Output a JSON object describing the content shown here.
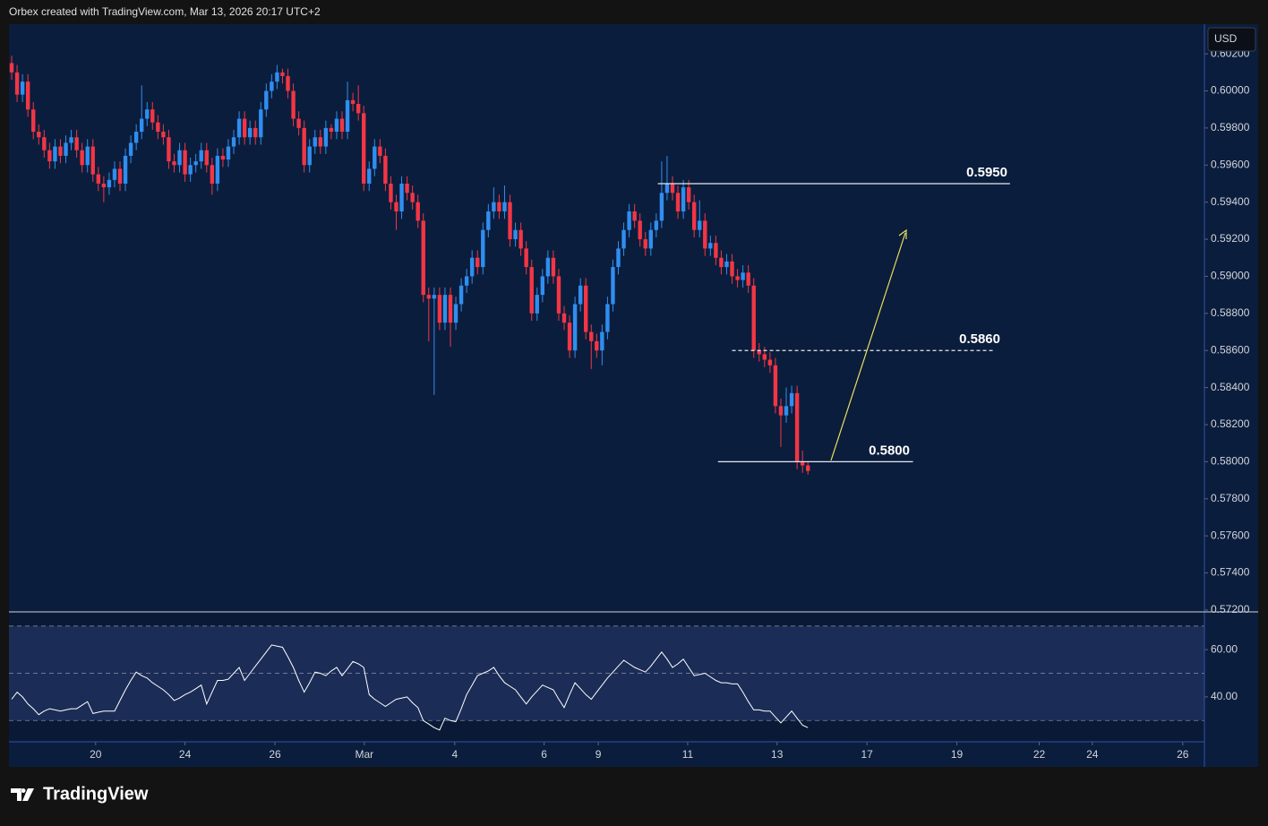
{
  "header": "Orbex created with TradingView.com, Mar 13, 2026 20:17 UTC+2",
  "logo": "TradingView",
  "chart_data": [
    {
      "type": "candlestick",
      "currency": "USD",
      "up_color": "#2f8ef0",
      "down_color": "#f23645",
      "grid": false,
      "xlim": [
        -0.5,
        220.2
      ],
      "ylim": [
        0.5719,
        0.6036
      ],
      "xticks": [
        {
          "value": 15.5,
          "label": "20"
        },
        {
          "value": 32,
          "label": "24"
        },
        {
          "value": 48.6,
          "label": "26"
        },
        {
          "value": 65.1,
          "label": "Mar"
        },
        {
          "value": 81.8,
          "label": "4"
        },
        {
          "value": 98.3,
          "label": "6"
        },
        {
          "value": 108.3,
          "label": "9"
        },
        {
          "value": 124.8,
          "label": "11"
        },
        {
          "value": 141.3,
          "label": "13"
        },
        {
          "value": 157.9,
          "label": "17"
        },
        {
          "value": 174.5,
          "label": "19"
        },
        {
          "value": 189.7,
          "label": "22"
        },
        {
          "value": 199.5,
          "label": "24"
        },
        {
          "value": 216.2,
          "label": "26"
        }
      ],
      "yticks": [
        {
          "value": 0.572,
          "label": "0.57200"
        },
        {
          "value": 0.574,
          "label": "0.57400"
        },
        {
          "value": 0.576,
          "label": "0.57600"
        },
        {
          "value": 0.578,
          "label": "0.57800"
        },
        {
          "value": 0.58,
          "label": "0.58000"
        },
        {
          "value": 0.582,
          "label": "0.58200"
        },
        {
          "value": 0.584,
          "label": "0.58400"
        },
        {
          "value": 0.586,
          "label": "0.58600"
        },
        {
          "value": 0.588,
          "label": "0.58800"
        },
        {
          "value": 0.59,
          "label": "0.59000"
        },
        {
          "value": 0.592,
          "label": "0.59200"
        },
        {
          "value": 0.594,
          "label": "0.59400"
        },
        {
          "value": 0.596,
          "label": "0.59600"
        },
        {
          "value": 0.598,
          "label": "0.59800"
        },
        {
          "value": 0.6,
          "label": "0.60000"
        },
        {
          "value": 0.602,
          "label": "0.60200"
        }
      ],
      "levels": [
        {
          "value": 0.595,
          "label": "0.5950",
          "style": "solid"
        },
        {
          "value": 0.586,
          "label": "0.5860",
          "style": "dashed"
        },
        {
          "value": 0.58,
          "label": "0.5800",
          "style": "solid"
        }
      ],
      "open": [
        0.6015,
        0.601,
        0.5998,
        0.6005,
        0.599,
        0.5978,
        0.5975,
        0.5968,
        0.5962,
        0.597,
        0.5965,
        0.5972,
        0.5975,
        0.5968,
        0.596,
        0.597,
        0.5955,
        0.595,
        0.5948,
        0.5952,
        0.5958,
        0.595,
        0.5965,
        0.5972,
        0.5978,
        0.5985,
        0.599,
        0.5983,
        0.5978,
        0.5975,
        0.5962,
        0.596,
        0.5968,
        0.5955,
        0.596,
        0.5962,
        0.5968,
        0.596,
        0.595,
        0.5965,
        0.5963,
        0.597,
        0.5975,
        0.5985,
        0.5975,
        0.598,
        0.5975,
        0.599,
        0.6,
        0.6005,
        0.601,
        0.6008,
        0.6,
        0.5985,
        0.598,
        0.596,
        0.597,
        0.5975,
        0.597,
        0.598,
        0.5978,
        0.5985,
        0.5978,
        0.5995,
        0.5993,
        0.5988,
        0.595,
        0.5958,
        0.597,
        0.5965,
        0.595,
        0.594,
        0.5935,
        0.595,
        0.5945,
        0.594,
        0.593,
        0.589,
        0.5888,
        0.589,
        0.5875,
        0.589,
        0.5875,
        0.5885,
        0.5895,
        0.59,
        0.591,
        0.5905,
        0.5925,
        0.5935,
        0.594,
        0.5935,
        0.594,
        0.592,
        0.5925,
        0.5915,
        0.5905,
        0.588,
        0.589,
        0.59,
        0.591,
        0.59,
        0.588,
        0.5875,
        0.586,
        0.5885,
        0.5895,
        0.587,
        0.5865,
        0.586,
        0.587,
        0.5885,
        0.5905,
        0.5915,
        0.5925,
        0.5935,
        0.593,
        0.592,
        0.5915,
        0.5925,
        0.593,
        0.5945,
        0.595,
        0.5945,
        0.5935,
        0.5948,
        0.594,
        0.5925,
        0.593,
        0.5915,
        0.5918,
        0.591,
        0.5905,
        0.5908,
        0.59,
        0.5898,
        0.5902,
        0.5895,
        0.586,
        0.5858,
        0.5855,
        0.5852,
        0.583,
        0.5825,
        0.583,
        0.5837,
        0.58,
        0.5798
      ],
      "high": [
        0.6019,
        0.6014,
        0.6009,
        0.6009,
        0.5994,
        0.5982,
        0.5979,
        0.5972,
        0.5974,
        0.5974,
        0.5976,
        0.5979,
        0.5979,
        0.5972,
        0.5974,
        0.5974,
        0.5959,
        0.5954,
        0.5956,
        0.5962,
        0.5962,
        0.5969,
        0.5976,
        0.5982,
        0.6003,
        0.5994,
        0.5994,
        0.5987,
        0.5982,
        0.5979,
        0.5966,
        0.5972,
        0.5972,
        0.5964,
        0.5966,
        0.5972,
        0.5972,
        0.5964,
        0.5969,
        0.5969,
        0.5974,
        0.5979,
        0.5989,
        0.5989,
        0.5984,
        0.5984,
        0.5994,
        0.6004,
        0.6009,
        0.6014,
        0.6012,
        0.6012,
        0.6004,
        0.5989,
        0.5984,
        0.5974,
        0.5979,
        0.5979,
        0.5984,
        0.5982,
        0.5989,
        0.5989,
        0.6005,
        0.5999,
        0.6003,
        0.5992,
        0.5962,
        0.5974,
        0.5974,
        0.5969,
        0.5954,
        0.5944,
        0.5954,
        0.5954,
        0.5949,
        0.5944,
        0.5934,
        0.5894,
        0.5894,
        0.5894,
        0.5894,
        0.5894,
        0.5889,
        0.5899,
        0.5904,
        0.5914,
        0.5914,
        0.5929,
        0.5939,
        0.5948,
        0.5944,
        0.5949,
        0.5944,
        0.5929,
        0.5929,
        0.5919,
        0.5909,
        0.5894,
        0.5904,
        0.5914,
        0.5914,
        0.5904,
        0.5884,
        0.5879,
        0.5889,
        0.5899,
        0.5899,
        0.5874,
        0.5869,
        0.5874,
        0.5889,
        0.5909,
        0.5919,
        0.5929,
        0.5939,
        0.5939,
        0.5934,
        0.5924,
        0.5929,
        0.5934,
        0.5962,
        0.5965,
        0.5954,
        0.5949,
        0.5952,
        0.5952,
        0.5944,
        0.5941,
        0.5934,
        0.5922,
        0.5922,
        0.5914,
        0.5912,
        0.5912,
        0.5904,
        0.5906,
        0.5906,
        0.5899,
        0.5864,
        0.5862,
        0.5859,
        0.5856,
        0.5834,
        0.584,
        0.5841,
        0.5841,
        0.5806,
        0.58
      ],
      "low": [
        0.6006,
        0.5994,
        0.5994,
        0.5986,
        0.5974,
        0.5971,
        0.5964,
        0.5958,
        0.5958,
        0.5961,
        0.5961,
        0.5968,
        0.5964,
        0.5956,
        0.5956,
        0.5951,
        0.5946,
        0.594,
        0.5944,
        0.5948,
        0.5946,
        0.5946,
        0.5961,
        0.5968,
        0.5974,
        0.5981,
        0.5979,
        0.5974,
        0.5971,
        0.5958,
        0.5956,
        0.5956,
        0.5951,
        0.5951,
        0.5956,
        0.5958,
        0.5956,
        0.5944,
        0.5946,
        0.5959,
        0.5959,
        0.5966,
        0.5971,
        0.5971,
        0.5971,
        0.5971,
        0.5971,
        0.5986,
        0.5996,
        0.6001,
        0.6004,
        0.5996,
        0.5981,
        0.5976,
        0.5956,
        0.5956,
        0.5966,
        0.5966,
        0.5966,
        0.5974,
        0.5974,
        0.5974,
        0.5974,
        0.5989,
        0.5984,
        0.5946,
        0.5946,
        0.5954,
        0.5961,
        0.5946,
        0.5936,
        0.5925,
        0.5931,
        0.5941,
        0.5936,
        0.5926,
        0.5886,
        0.5865,
        0.5836,
        0.5871,
        0.5871,
        0.5862,
        0.5871,
        0.5881,
        0.5891,
        0.5896,
        0.5901,
        0.5901,
        0.5921,
        0.5931,
        0.5931,
        0.5931,
        0.5916,
        0.5916,
        0.5911,
        0.5901,
        0.5876,
        0.5876,
        0.5886,
        0.5896,
        0.5896,
        0.5876,
        0.5871,
        0.5856,
        0.5856,
        0.5881,
        0.5866,
        0.585,
        0.5856,
        0.5852,
        0.5866,
        0.5881,
        0.5901,
        0.5911,
        0.5921,
        0.5926,
        0.5916,
        0.5911,
        0.5911,
        0.5921,
        0.5926,
        0.5941,
        0.5941,
        0.5931,
        0.5931,
        0.5936,
        0.5921,
        0.5921,
        0.5911,
        0.5911,
        0.5906,
        0.5901,
        0.5901,
        0.5896,
        0.5894,
        0.5894,
        0.5891,
        0.5856,
        0.5854,
        0.5851,
        0.5848,
        0.5826,
        0.5808,
        0.5821,
        0.5826,
        0.5796,
        0.5794,
        0.5793
      ],
      "close": [
        0.601,
        0.5998,
        0.6005,
        0.599,
        0.5978,
        0.5975,
        0.5968,
        0.5962,
        0.597,
        0.5965,
        0.5972,
        0.5975,
        0.5968,
        0.596,
        0.597,
        0.5955,
        0.595,
        0.5948,
        0.5952,
        0.5958,
        0.595,
        0.5965,
        0.5972,
        0.5978,
        0.5985,
        0.599,
        0.5983,
        0.5978,
        0.5975,
        0.5962,
        0.596,
        0.5968,
        0.5955,
        0.596,
        0.5962,
        0.5968,
        0.596,
        0.595,
        0.5965,
        0.5963,
        0.597,
        0.5975,
        0.5985,
        0.5975,
        0.598,
        0.5975,
        0.599,
        0.6,
        0.6005,
        0.601,
        0.6008,
        0.6,
        0.5985,
        0.598,
        0.596,
        0.597,
        0.5975,
        0.597,
        0.598,
        0.5978,
        0.5985,
        0.5978,
        0.5995,
        0.5993,
        0.5988,
        0.595,
        0.5958,
        0.597,
        0.5965,
        0.595,
        0.594,
        0.5935,
        0.595,
        0.5945,
        0.594,
        0.593,
        0.589,
        0.5888,
        0.589,
        0.5875,
        0.589,
        0.5875,
        0.5885,
        0.5895,
        0.59,
        0.591,
        0.5905,
        0.5925,
        0.5935,
        0.594,
        0.5935,
        0.594,
        0.592,
        0.5925,
        0.5915,
        0.5905,
        0.588,
        0.589,
        0.59,
        0.591,
        0.59,
        0.588,
        0.5875,
        0.586,
        0.5885,
        0.5895,
        0.587,
        0.5865,
        0.586,
        0.587,
        0.5885,
        0.5905,
        0.5915,
        0.5925,
        0.5935,
        0.593,
        0.592,
        0.5915,
        0.5925,
        0.593,
        0.5945,
        0.595,
        0.5945,
        0.5935,
        0.5948,
        0.594,
        0.5925,
        0.593,
        0.5915,
        0.5918,
        0.591,
        0.5905,
        0.5908,
        0.59,
        0.5898,
        0.5902,
        0.5895,
        0.586,
        0.5858,
        0.5855,
        0.5852,
        0.583,
        0.5825,
        0.583,
        0.5837,
        0.58,
        0.5798,
        0.5795
      ]
    },
    {
      "type": "line",
      "color": "#ffffff",
      "ylim": [
        21,
        76
      ],
      "yticks": [
        {
          "value": 40,
          "label": "40.00"
        },
        {
          "value": 60,
          "label": "60.00"
        }
      ],
      "bands": [
        70,
        50,
        30
      ],
      "band_fill": "#1b2c57",
      "values": [
        39,
        42,
        40,
        37,
        35,
        32.5,
        34,
        35,
        34.5,
        34,
        34.5,
        35,
        35,
        36.5,
        38,
        33,
        33.5,
        34,
        34,
        34,
        38.5,
        43,
        47,
        50.5,
        49,
        48,
        46,
        44.5,
        43,
        41,
        38.5,
        39.5,
        41,
        42,
        43.5,
        45,
        37,
        42,
        47,
        47,
        47.5,
        50,
        52.5,
        47,
        50,
        53,
        56,
        59,
        62,
        61.5,
        61,
        57,
        52.5,
        47,
        42,
        46,
        50.5,
        50,
        49,
        51,
        52.5,
        49,
        52,
        55,
        54,
        52.5,
        41,
        39,
        37.5,
        36,
        37.5,
        39,
        39.5,
        40,
        37.5,
        35.5,
        30,
        28.5,
        27,
        26,
        31,
        30,
        29.5,
        35,
        41,
        45,
        49,
        50,
        51,
        52.5,
        49,
        46,
        44.5,
        43,
        40,
        37,
        40,
        42.5,
        45,
        44,
        43,
        39,
        35.5,
        41,
        46,
        43.5,
        41,
        39,
        42,
        45,
        48,
        50.5,
        53,
        55.5,
        54,
        52.5,
        51.5,
        50.5,
        53,
        56,
        59,
        56,
        52.5,
        54,
        56,
        52.5,
        49,
        49.5,
        50,
        48.5,
        47,
        46,
        46,
        45.5,
        45.5,
        42,
        38,
        34.5,
        34.5,
        34,
        34,
        31.5,
        29,
        31.5,
        34,
        31,
        28,
        27
      ]
    }
  ]
}
